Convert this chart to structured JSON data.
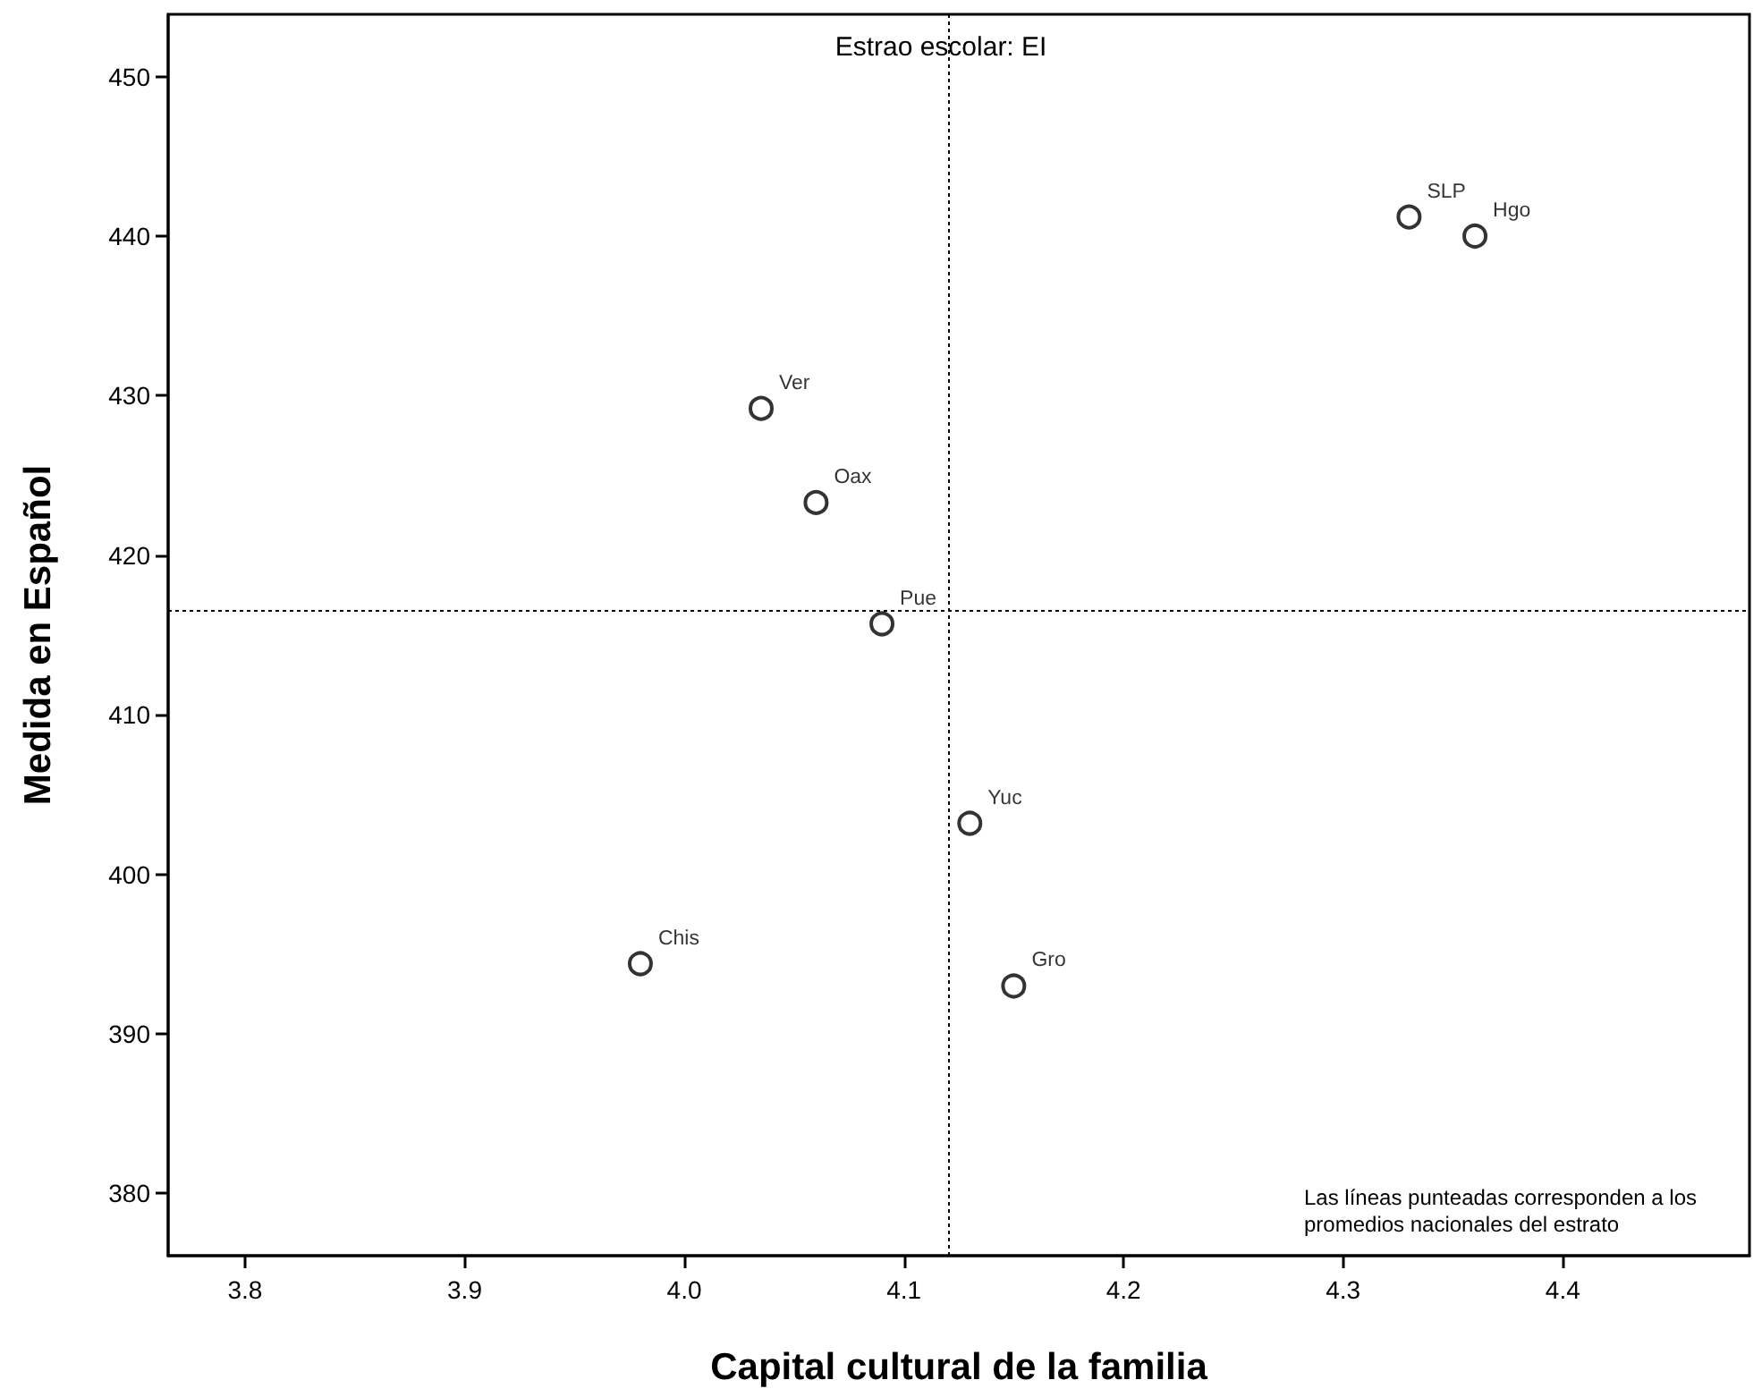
{
  "chart_data": {
    "type": "scatter",
    "title": "Estrao escolar: EI",
    "xlabel": "Capital cultural de la familia",
    "ylabel": "Medida en Español",
    "annotations": [
      "Las líneas punteadas corresponden a los promedios nacionales del estrato"
    ],
    "series": [
      {
        "name": "Ver",
        "color": "#000000",
        "x": [
          4.035
        ],
        "values": [
          429.2
        ]
      },
      {
        "name": "Oax",
        "color": "#000000",
        "x": [
          4.06
        ],
        "values": [
          423.3
        ]
      },
      {
        "name": "Pue",
        "color": "#000000",
        "x": [
          4.09
        ],
        "values": [
          415.7
        ]
      },
      {
        "name": "SLP",
        "color": "#000000",
        "x": [
          4.33
        ],
        "values": [
          441.2
        ]
      },
      {
        "name": "Hgo",
        "color": "#000000",
        "x": [
          4.36
        ],
        "values": [
          440.0
        ]
      },
      {
        "name": "Yuc",
        "color": "#000000",
        "x": [
          4.13
        ],
        "values": [
          403.2
        ]
      },
      {
        "name": "Chis",
        "color": "#000000",
        "x": [
          3.98
        ],
        "values": [
          394.4
        ]
      },
      {
        "name": "Gro",
        "color": "#000000",
        "x": [
          4.15
        ],
        "values": [
          393.0
        ]
      }
    ],
    "xlim": [
      3.765,
      4.485
    ],
    "xticks": [
      3.8,
      3.9,
      {
        "value": 4,
        "label": "4.0"
      },
      4.1,
      4.2,
      4.3,
      4.4
    ],
    "ylim": [
      376.1,
      453.9
    ],
    "yticks": [
      380,
      390,
      400,
      410,
      420,
      430,
      440,
      450
    ],
    "ref_lines": [
      {
        "axis": "x",
        "value": 4.12,
        "line_style": "dotted",
        "color": "#000000"
      },
      {
        "axis": "y",
        "value": 416.5,
        "line_style": "dotted",
        "color": "#000000"
      }
    ],
    "marker": "circle",
    "legend": false,
    "grid": false
  }
}
